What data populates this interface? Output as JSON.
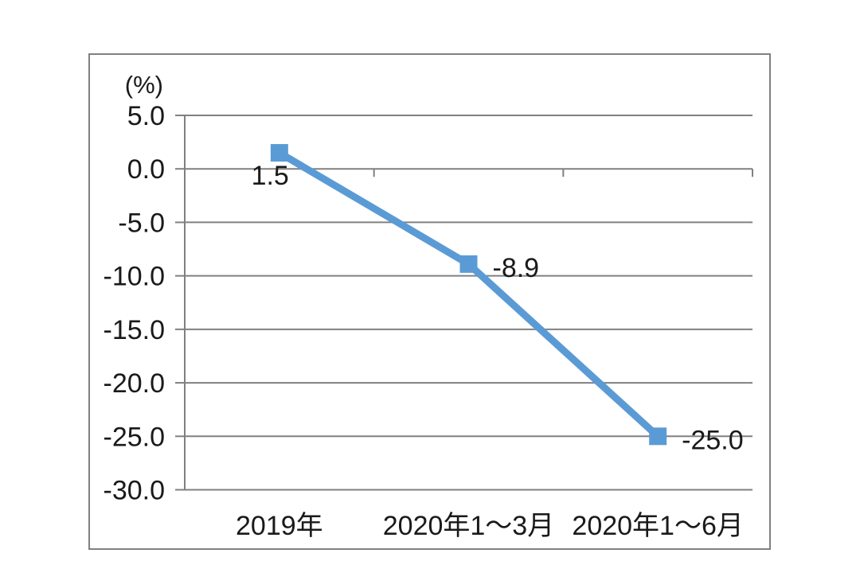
{
  "chart_data": {
    "type": "line",
    "title": "",
    "unit_label": "(%)",
    "categories": [
      "2019年",
      "2020年1～3月",
      "2020年1～6月"
    ],
    "series": [
      {
        "name": "series-1",
        "values": [
          1.5,
          -8.9,
          -25.0
        ]
      }
    ],
    "data_labels": [
      "1.5",
      "-8.9",
      "-25.0"
    ],
    "data_label_positions": [
      "below-left",
      "right",
      "right"
    ],
    "ytick_labels": [
      "5.0",
      "0.0",
      "-5.0",
      "-10.0",
      "-15.0",
      "-20.0",
      "-25.0",
      "-30.0"
    ],
    "yticks": [
      5.0,
      0.0,
      -5.0,
      -10.0,
      -15.0,
      -20.0,
      -25.0,
      -30.0
    ],
    "ylim": [
      -30.0,
      5.0
    ],
    "xlabel": "",
    "ylabel": "(%)",
    "grid": true,
    "legend": "none",
    "axis_cross_at": 0.0,
    "colors": {
      "line": "#5B9BD5",
      "marker": "#5B9BD5",
      "grid": "#808080",
      "axis": "#808080",
      "border": "#808080",
      "text": "#1a1a1a",
      "background": "#ffffff"
    }
  }
}
